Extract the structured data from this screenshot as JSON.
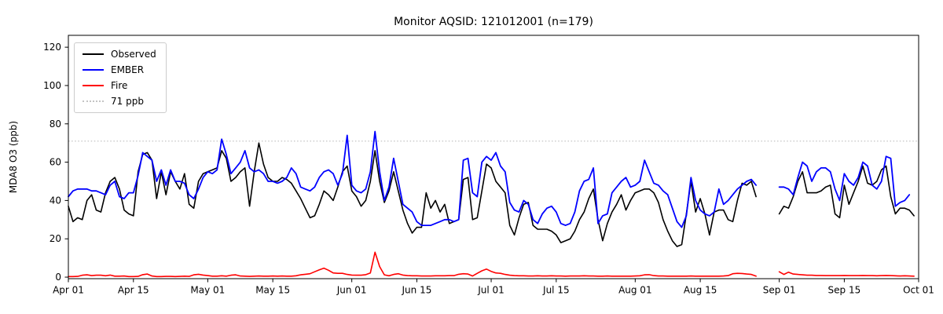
{
  "chart_data": {
    "type": "line",
    "title": "Monitor AQSID: 121012001 (n=179)",
    "ylabel": "MDA8 O3 (ppb)",
    "xlabel": "",
    "x_unit": "days since Apr 01",
    "xlim": [
      0,
      183
    ],
    "ylim": [
      -0.8,
      126.2
    ],
    "grid": false,
    "legend_position": "upper left",
    "threshold": {
      "label": "71 ppb",
      "value": 71,
      "color": "#c4c4c4",
      "style": "dotted"
    },
    "y_ticks": [
      0,
      20,
      40,
      60,
      80,
      100,
      120
    ],
    "x_ticks": [
      {
        "label": "Apr 01",
        "day": 0
      },
      {
        "label": "Apr 15",
        "day": 14
      },
      {
        "label": "May 01",
        "day": 30
      },
      {
        "label": "May 15",
        "day": 44
      },
      {
        "label": "Jun 01",
        "day": 61
      },
      {
        "label": "Jun 15",
        "day": 75
      },
      {
        "label": "Jul 01",
        "day": 91
      },
      {
        "label": "Jul 15",
        "day": 105
      },
      {
        "label": "Aug 01",
        "day": 122
      },
      {
        "label": "Aug 15",
        "day": 136
      },
      {
        "label": "Sep 01",
        "day": 153
      },
      {
        "label": "Sep 15",
        "day": 167
      },
      {
        "label": "Oct 01",
        "day": 183
      }
    ],
    "legend": [
      {
        "label": "Observed",
        "color": "#000000",
        "style": "solid"
      },
      {
        "label": "EMBER",
        "color": "#0000ff",
        "style": "solid"
      },
      {
        "label": "Fire",
        "color": "#ff0000",
        "style": "solid"
      },
      {
        "label": "71 ppb",
        "color": "#c4c4c4",
        "style": "dotted"
      }
    ],
    "series": [
      {
        "name": "Observed",
        "color": "#000000",
        "width": 1.6,
        "values": [
          37,
          29,
          31,
          30,
          40,
          43,
          35,
          34,
          44,
          50,
          52,
          46,
          35,
          33,
          32,
          55,
          64,
          65,
          61,
          41,
          55,
          43,
          55,
          50,
          46,
          54,
          38,
          36,
          50,
          54,
          55,
          56,
          57,
          66,
          62,
          50,
          52,
          55,
          57,
          37,
          55,
          70,
          59,
          52,
          50,
          50,
          52,
          51,
          49,
          45,
          41,
          36,
          31,
          32,
          38,
          45,
          43,
          40,
          47,
          55,
          58,
          45,
          42,
          37,
          40,
          50,
          66,
          50,
          39,
          45,
          55,
          45,
          35,
          28,
          23,
          26,
          26,
          44,
          36,
          40,
          34,
          38,
          28,
          29,
          30,
          51,
          52,
          30,
          31,
          45,
          59,
          57,
          50,
          47,
          44,
          27,
          22,
          31,
          38,
          39,
          27,
          25,
          25,
          25,
          24,
          22,
          18,
          19,
          20,
          24,
          30,
          34,
          41,
          46,
          30,
          19,
          28,
          34,
          38,
          43,
          35,
          40,
          44,
          45,
          46,
          46,
          44,
          39,
          30,
          24,
          19,
          16,
          17,
          33,
          50,
          34,
          41,
          33,
          22,
          34,
          35,
          35,
          30,
          29,
          40,
          49,
          48,
          50,
          42,
          null,
          null,
          null,
          null,
          33,
          37,
          36,
          42,
          50,
          55,
          44,
          44,
          44,
          45,
          47,
          48,
          33,
          31,
          48,
          38,
          44,
          50,
          58,
          49,
          48,
          50,
          56,
          58,
          42,
          33,
          36,
          36,
          35,
          32
        ]
      },
      {
        "name": "EMBER",
        "color": "#0000ff",
        "width": 1.8,
        "values": [
          42,
          45,
          46,
          46,
          46,
          45,
          45,
          44,
          43,
          48,
          50,
          42,
          41,
          44,
          44,
          53,
          65,
          63,
          61,
          50,
          56,
          48,
          56,
          50,
          50,
          49,
          43,
          41,
          46,
          52,
          55,
          54,
          56,
          72,
          64,
          54,
          57,
          60,
          66,
          57,
          55,
          56,
          54,
          50,
          50,
          49,
          50,
          52,
          57,
          54,
          47,
          46,
          45,
          47,
          52,
          55,
          56,
          54,
          48,
          54,
          74,
          48,
          45,
          44,
          46,
          55,
          76,
          55,
          40,
          47,
          62,
          50,
          38,
          36,
          34,
          29,
          27,
          27,
          27,
          28,
          29,
          30,
          30,
          29,
          30,
          61,
          62,
          44,
          42,
          60,
          63,
          61,
          65,
          58,
          55,
          39,
          35,
          34,
          40,
          38,
          30,
          28,
          33,
          36,
          37,
          34,
          28,
          27,
          28,
          34,
          45,
          50,
          51,
          57,
          28,
          32,
          33,
          44,
          47,
          50,
          52,
          47,
          48,
          50,
          61,
          55,
          49,
          48,
          45,
          43,
          36,
          29,
          26,
          32,
          52,
          40,
          35,
          33,
          32,
          34,
          46,
          38,
          40,
          43,
          46,
          48,
          50,
          51,
          48,
          null,
          null,
          null,
          null,
          47,
          47,
          46,
          43,
          52,
          60,
          58,
          50,
          55,
          57,
          57,
          55,
          46,
          40,
          54,
          50,
          48,
          52,
          60,
          58,
          48,
          46,
          50,
          63,
          62,
          37,
          39,
          40,
          43,
          null
        ]
      },
      {
        "name": "Fire",
        "color": "#ff0000",
        "width": 1.6,
        "values": [
          0.3,
          0.3,
          0.4,
          1.0,
          1.2,
          0.8,
          1.0,
          1.0,
          0.7,
          1.1,
          0.5,
          0.5,
          0.6,
          0.3,
          0.3,
          0.4,
          1.3,
          1.6,
          0.6,
          0.3,
          0.3,
          0.4,
          0.4,
          0.3,
          0.4,
          0.5,
          0.4,
          1.2,
          1.5,
          1.1,
          0.8,
          0.5,
          0.5,
          0.7,
          0.5,
          1.0,
          1.2,
          0.6,
          0.5,
          0.4,
          0.5,
          0.6,
          0.5,
          0.5,
          0.6,
          0.5,
          0.6,
          0.5,
          0.5,
          0.7,
          1.2,
          1.5,
          1.8,
          2.8,
          3.8,
          4.7,
          3.6,
          2.2,
          2.0,
          2.0,
          1.4,
          1.1,
          1.0,
          1.0,
          1.3,
          2.2,
          13.0,
          5.5,
          1.2,
          0.7,
          1.4,
          1.8,
          1.1,
          0.8,
          0.7,
          0.7,
          0.6,
          0.6,
          0.6,
          0.7,
          0.7,
          0.7,
          0.8,
          0.8,
          1.5,
          1.8,
          1.6,
          0.6,
          2.0,
          3.3,
          4.2,
          3.0,
          2.2,
          2.0,
          1.4,
          1.0,
          0.8,
          0.7,
          0.7,
          0.6,
          0.6,
          0.7,
          0.6,
          0.6,
          0.7,
          0.6,
          0.6,
          0.5,
          0.6,
          0.6,
          0.6,
          0.7,
          0.6,
          0.6,
          0.5,
          0.5,
          0.6,
          0.5,
          0.5,
          0.5,
          0.5,
          0.5,
          0.6,
          0.7,
          1.2,
          1.3,
          0.8,
          0.6,
          0.6,
          0.5,
          0.5,
          0.5,
          0.5,
          0.5,
          0.6,
          0.5,
          0.5,
          0.5,
          0.5,
          0.5,
          0.5,
          0.6,
          0.8,
          1.8,
          2.0,
          1.9,
          1.6,
          1.4,
          0.5,
          null,
          null,
          null,
          null,
          2.8,
          1.4,
          2.6,
          1.6,
          1.4,
          1.2,
          1.0,
          1.0,
          0.9,
          0.9,
          0.8,
          0.8,
          0.8,
          0.8,
          0.9,
          0.8,
          0.8,
          0.8,
          0.9,
          0.8,
          0.8,
          0.7,
          0.8,
          0.9,
          0.8,
          0.7,
          0.6,
          0.7,
          0.6,
          0.5
        ]
      }
    ],
    "data_gap": "Aug 28 - Aug 31 (no data, n=179 of 183 days)"
  }
}
